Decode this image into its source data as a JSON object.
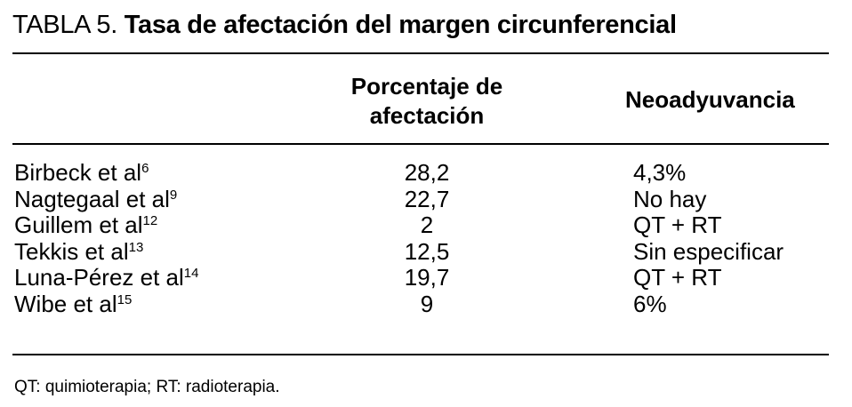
{
  "table": {
    "label": "TABLA 5.",
    "title": "Tasa de afectación del margen circunferencial",
    "columns": [
      "Porcentaje de afectación",
      "Neoadyuvancia"
    ],
    "rows": [
      {
        "study": "Birbeck et al",
        "ref": "6",
        "percent": "28,2",
        "neoadjuvant": "4,3%"
      },
      {
        "study": "Nagtegaal et al",
        "ref": "9",
        "percent": "22,7",
        "neoadjuvant": "No hay"
      },
      {
        "study": "Guillem et al",
        "ref": "12",
        "percent": "2",
        "neoadjuvant": "QT + RT"
      },
      {
        "study": "Tekkis et al",
        "ref": "13",
        "percent": "12,5",
        "neoadjuvant": "Sin especificar"
      },
      {
        "study": "Luna-Pérez et al",
        "ref": "14",
        "percent": "19,7",
        "neoadjuvant": "QT + RT"
      },
      {
        "study": "Wibe et al",
        "ref": "15",
        "percent": "9",
        "neoadjuvant": "6%"
      }
    ],
    "footnote": "QT: quimioterapia; RT: radioterapia."
  }
}
